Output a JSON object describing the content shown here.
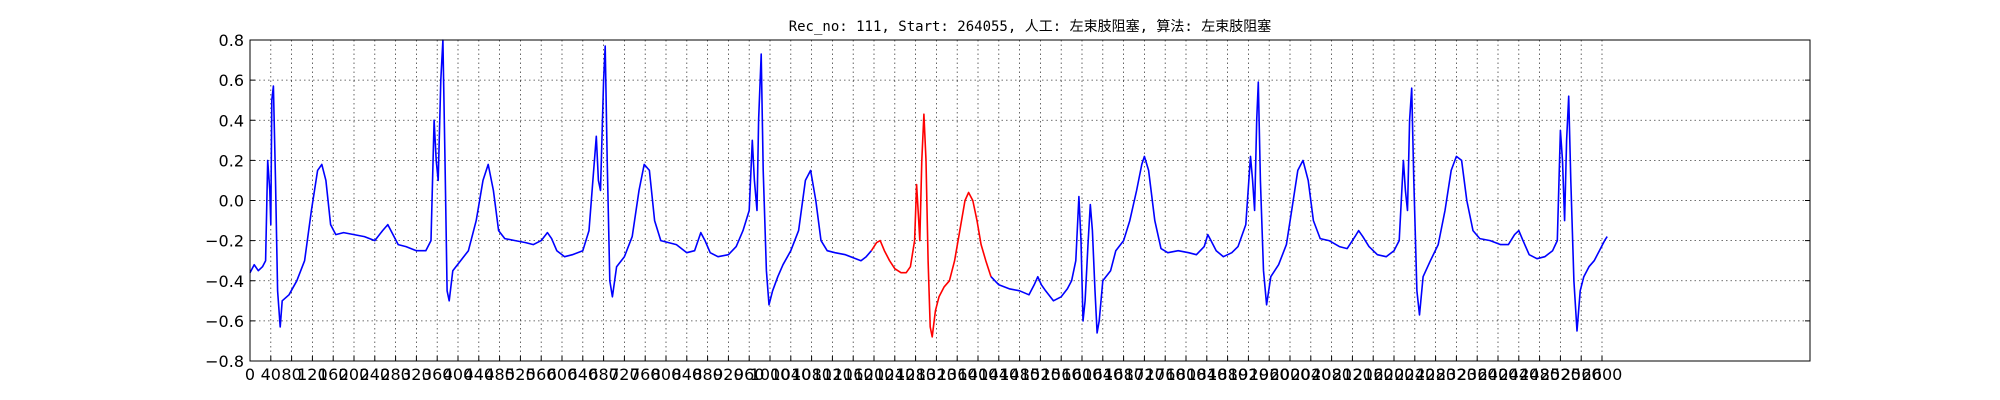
{
  "chart_data": {
    "type": "line",
    "title": "Rec_no: 111, Start: 264055, 人工: 左束肢阻塞, 算法: 左束肢阻塞",
    "xlabel": "",
    "ylabel": "",
    "xlim": [
      0,
      3000
    ],
    "ylim": [
      -0.8,
      0.8
    ],
    "grid": true,
    "xticks": [
      0,
      40,
      80,
      120,
      160,
      200,
      240,
      280,
      320,
      360,
      400,
      440,
      480,
      520,
      560,
      600,
      640,
      680,
      720,
      760,
      800,
      840,
      880,
      920,
      960,
      1000,
      1040,
      1080,
      1120,
      1160,
      1200,
      1240,
      1280,
      1320,
      1360,
      1400,
      1440,
      1480,
      1520,
      1560,
      1600,
      1640,
      1680,
      1720,
      1760,
      1800,
      1840,
      1880,
      1920,
      1960,
      2000,
      2040,
      2080,
      2120,
      2160,
      2200,
      2240,
      2280,
      2320,
      2360,
      2400,
      2440,
      2480,
      2520,
      2560,
      2600
    ],
    "yticks": [
      -0.8,
      -0.6,
      -0.4,
      -0.2,
      0.0,
      0.2,
      0.4,
      0.6,
      0.8
    ],
    "ytick_labels": [
      "−0.8",
      "−0.6",
      "−0.4",
      "−0.2",
      "0.0",
      "0.2",
      "0.4",
      "0.6",
      "0.8"
    ],
    "beat_positions": [
      42,
      367,
      681,
      1004,
      1326,
      1657,
      1991,
      2312,
      2629
    ],
    "series": [
      {
        "color": "#0000ff",
        "points": [
          [
            0,
            -0.36
          ],
          [
            8,
            -0.32
          ],
          [
            16,
            -0.35
          ],
          [
            24,
            -0.33
          ],
          [
            30,
            -0.3
          ],
          [
            34,
            0.2
          ],
          [
            38,
            0.05
          ],
          [
            40,
            -0.12
          ],
          [
            42,
            0.5
          ],
          [
            45,
            0.57
          ],
          [
            49,
            0.1
          ],
          [
            53,
            -0.45
          ],
          [
            58,
            -0.63
          ],
          [
            62,
            -0.5
          ],
          [
            75,
            -0.47
          ],
          [
            90,
            -0.4
          ],
          [
            105,
            -0.3
          ],
          [
            118,
            -0.05
          ],
          [
            130,
            0.15
          ],
          [
            138,
            0.18
          ],
          [
            146,
            0.1
          ],
          [
            155,
            -0.12
          ],
          [
            165,
            -0.17
          ],
          [
            180,
            -0.16
          ],
          [
            200,
            -0.17
          ],
          [
            220,
            -0.18
          ],
          [
            240,
            -0.2
          ],
          [
            255,
            -0.15
          ],
          [
            265,
            -0.12
          ],
          [
            275,
            -0.17
          ],
          [
            285,
            -0.22
          ],
          [
            300,
            -0.23
          ],
          [
            320,
            -0.25
          ],
          [
            338,
            -0.25
          ],
          [
            348,
            -0.2
          ],
          [
            354,
            0.4
          ],
          [
            358,
            0.2
          ],
          [
            362,
            0.1
          ],
          [
            367,
            0.6
          ],
          [
            371,
            0.8
          ],
          [
            375,
            0.2
          ],
          [
            379,
            -0.45
          ],
          [
            383,
            -0.5
          ],
          [
            390,
            -0.35
          ],
          [
            405,
            -0.3
          ],
          [
            420,
            -0.25
          ],
          [
            435,
            -0.1
          ],
          [
            448,
            0.1
          ],
          [
            458,
            0.18
          ],
          [
            468,
            0.05
          ],
          [
            478,
            -0.15
          ],
          [
            490,
            -0.19
          ],
          [
            510,
            -0.2
          ],
          [
            530,
            -0.21
          ],
          [
            545,
            -0.22
          ],
          [
            560,
            -0.2
          ],
          [
            572,
            -0.16
          ],
          [
            580,
            -0.19
          ],
          [
            590,
            -0.25
          ],
          [
            605,
            -0.28
          ],
          [
            620,
            -0.27
          ],
          [
            640,
            -0.25
          ],
          [
            652,
            -0.15
          ],
          [
            666,
            0.32
          ],
          [
            670,
            0.1
          ],
          [
            674,
            0.05
          ],
          [
            680,
            0.6
          ],
          [
            683,
            0.77
          ],
          [
            687,
            0.2
          ],
          [
            692,
            -0.4
          ],
          [
            697,
            -0.48
          ],
          [
            705,
            -0.33
          ],
          [
            720,
            -0.28
          ],
          [
            735,
            -0.18
          ],
          [
            748,
            0.05
          ],
          [
            758,
            0.18
          ],
          [
            768,
            0.15
          ],
          [
            778,
            -0.1
          ],
          [
            790,
            -0.2
          ],
          [
            805,
            -0.21
          ],
          [
            820,
            -0.22
          ],
          [
            840,
            -0.26
          ],
          [
            855,
            -0.25
          ],
          [
            867,
            -0.16
          ],
          [
            875,
            -0.2
          ],
          [
            885,
            -0.26
          ],
          [
            900,
            -0.28
          ],
          [
            920,
            -0.27
          ],
          [
            935,
            -0.23
          ],
          [
            948,
            -0.15
          ],
          [
            960,
            -0.05
          ],
          [
            966,
            0.3
          ],
          [
            970,
            0.1
          ],
          [
            975,
            -0.05
          ],
          [
            978,
            0.4
          ],
          [
            983,
            0.73
          ],
          [
            987,
            0.15
          ],
          [
            993,
            -0.35
          ],
          [
            998,
            -0.52
          ],
          [
            1005,
            -0.45
          ],
          [
            1015,
            -0.38
          ],
          [
            1025,
            -0.32
          ],
          [
            1040,
            -0.25
          ],
          [
            1055,
            -0.15
          ],
          [
            1068,
            0.1
          ],
          [
            1078,
            0.15
          ],
          [
            1088,
            0.0
          ],
          [
            1098,
            -0.2
          ],
          [
            1110,
            -0.25
          ],
          [
            1125,
            -0.26
          ],
          [
            1145,
            -0.27
          ],
          [
            1165,
            -0.29
          ],
          [
            1175,
            -0.3
          ],
          [
            1185,
            -0.28
          ],
          [
            1195,
            -0.25
          ]
        ]
      },
      {
        "color": "#ff0000",
        "points": [
          [
            1195,
            -0.25
          ],
          [
            1205,
            -0.21
          ],
          [
            1212,
            -0.2
          ],
          [
            1220,
            -0.25
          ],
          [
            1230,
            -0.3
          ],
          [
            1240,
            -0.34
          ],
          [
            1252,
            -0.36
          ],
          [
            1262,
            -0.36
          ],
          [
            1270,
            -0.33
          ],
          [
            1278,
            -0.2
          ],
          [
            1282,
            0.08
          ],
          [
            1286,
            -0.1
          ],
          [
            1288,
            -0.2
          ],
          [
            1292,
            0.2
          ],
          [
            1296,
            0.43
          ],
          [
            1300,
            0.2
          ],
          [
            1304,
            -0.3
          ],
          [
            1308,
            -0.63
          ],
          [
            1312,
            -0.68
          ],
          [
            1318,
            -0.55
          ],
          [
            1325,
            -0.48
          ],
          [
            1335,
            -0.43
          ],
          [
            1345,
            -0.4
          ],
          [
            1355,
            -0.3
          ],
          [
            1365,
            -0.15
          ],
          [
            1375,
            0.0
          ],
          [
            1382,
            0.04
          ],
          [
            1390,
            0.0
          ],
          [
            1398,
            -0.1
          ],
          [
            1406,
            -0.22
          ],
          [
            1415,
            -0.3
          ],
          [
            1425,
            -0.38
          ]
        ]
      },
      {
        "color": "#0000ff",
        "points": [
          [
            1425,
            -0.38
          ],
          [
            1440,
            -0.42
          ],
          [
            1460,
            -0.44
          ],
          [
            1480,
            -0.45
          ],
          [
            1498,
            -0.47
          ],
          [
            1508,
            -0.42
          ],
          [
            1515,
            -0.38
          ],
          [
            1522,
            -0.42
          ],
          [
            1530,
            -0.45
          ],
          [
            1545,
            -0.5
          ],
          [
            1560,
            -0.48
          ],
          [
            1572,
            -0.44
          ],
          [
            1580,
            -0.4
          ],
          [
            1588,
            -0.3
          ],
          [
            1594,
            0.02
          ],
          [
            1598,
            -0.2
          ],
          [
            1602,
            -0.6
          ],
          [
            1606,
            -0.5
          ],
          [
            1612,
            -0.2
          ],
          [
            1616,
            -0.02
          ],
          [
            1620,
            -0.15
          ],
          [
            1625,
            -0.45
          ],
          [
            1629,
            -0.66
          ],
          [
            1633,
            -0.6
          ],
          [
            1640,
            -0.4
          ],
          [
            1655,
            -0.35
          ],
          [
            1665,
            -0.25
          ],
          [
            1680,
            -0.2
          ],
          [
            1692,
            -0.1
          ],
          [
            1705,
            0.05
          ],
          [
            1715,
            0.18
          ],
          [
            1720,
            0.22
          ],
          [
            1728,
            0.15
          ],
          [
            1740,
            -0.1
          ],
          [
            1752,
            -0.24
          ],
          [
            1765,
            -0.26
          ],
          [
            1785,
            -0.25
          ],
          [
            1805,
            -0.26
          ],
          [
            1820,
            -0.27
          ],
          [
            1835,
            -0.23
          ],
          [
            1842,
            -0.17
          ],
          [
            1848,
            -0.2
          ],
          [
            1858,
            -0.25
          ],
          [
            1872,
            -0.28
          ],
          [
            1888,
            -0.26
          ],
          [
            1900,
            -0.23
          ],
          [
            1915,
            -0.12
          ],
          [
            1924,
            0.22
          ],
          [
            1928,
            0.1
          ],
          [
            1932,
            -0.05
          ],
          [
            1936,
            0.4
          ],
          [
            1939,
            0.59
          ],
          [
            1943,
            0.1
          ],
          [
            1949,
            -0.35
          ],
          [
            1955,
            -0.52
          ],
          [
            1963,
            -0.38
          ],
          [
            1978,
            -0.32
          ],
          [
            1993,
            -0.22
          ],
          [
            2005,
            -0.02
          ],
          [
            2015,
            0.15
          ],
          [
            2025,
            0.2
          ],
          [
            2035,
            0.1
          ],
          [
            2045,
            -0.1
          ],
          [
            2058,
            -0.19
          ],
          [
            2075,
            -0.2
          ],
          [
            2095,
            -0.23
          ],
          [
            2110,
            -0.24
          ],
          [
            2125,
            -0.18
          ],
          [
            2132,
            -0.15
          ],
          [
            2140,
            -0.18
          ],
          [
            2152,
            -0.23
          ],
          [
            2168,
            -0.27
          ],
          [
            2185,
            -0.28
          ],
          [
            2200,
            -0.25
          ],
          [
            2210,
            -0.2
          ],
          [
            2218,
            0.2
          ],
          [
            2222,
            0.05
          ],
          [
            2226,
            -0.05
          ],
          [
            2230,
            0.4
          ],
          [
            2234,
            0.56
          ],
          [
            2238,
            0.1
          ],
          [
            2244,
            -0.45
          ],
          [
            2249,
            -0.57
          ],
          [
            2256,
            -0.38
          ],
          [
            2270,
            -0.3
          ],
          [
            2285,
            -0.22
          ],
          [
            2298,
            -0.05
          ],
          [
            2310,
            0.15
          ],
          [
            2320,
            0.22
          ],
          [
            2330,
            0.2
          ],
          [
            2340,
            0.0
          ],
          [
            2352,
            -0.15
          ],
          [
            2365,
            -0.19
          ],
          [
            2385,
            -0.2
          ],
          [
            2405,
            -0.22
          ],
          [
            2420,
            -0.22
          ],
          [
            2432,
            -0.17
          ],
          [
            2440,
            -0.15
          ],
          [
            2448,
            -0.2
          ],
          [
            2460,
            -0.27
          ],
          [
            2475,
            -0.29
          ],
          [
            2490,
            -0.28
          ],
          [
            2505,
            -0.25
          ],
          [
            2514,
            -0.2
          ],
          [
            2520,
            0.35
          ],
          [
            2524,
            0.2
          ],
          [
            2528,
            -0.1
          ],
          [
            2532,
            0.3
          ],
          [
            2536,
            0.52
          ],
          [
            2540,
            0.1
          ],
          [
            2546,
            -0.4
          ],
          [
            2552,
            -0.65
          ],
          [
            2558,
            -0.45
          ],
          [
            2565,
            -0.38
          ],
          [
            2575,
            -0.33
          ],
          [
            2585,
            -0.3
          ],
          [
            2595,
            -0.25
          ],
          [
            2605,
            -0.2
          ],
          [
            2610,
            -0.18
          ]
        ]
      }
    ]
  }
}
